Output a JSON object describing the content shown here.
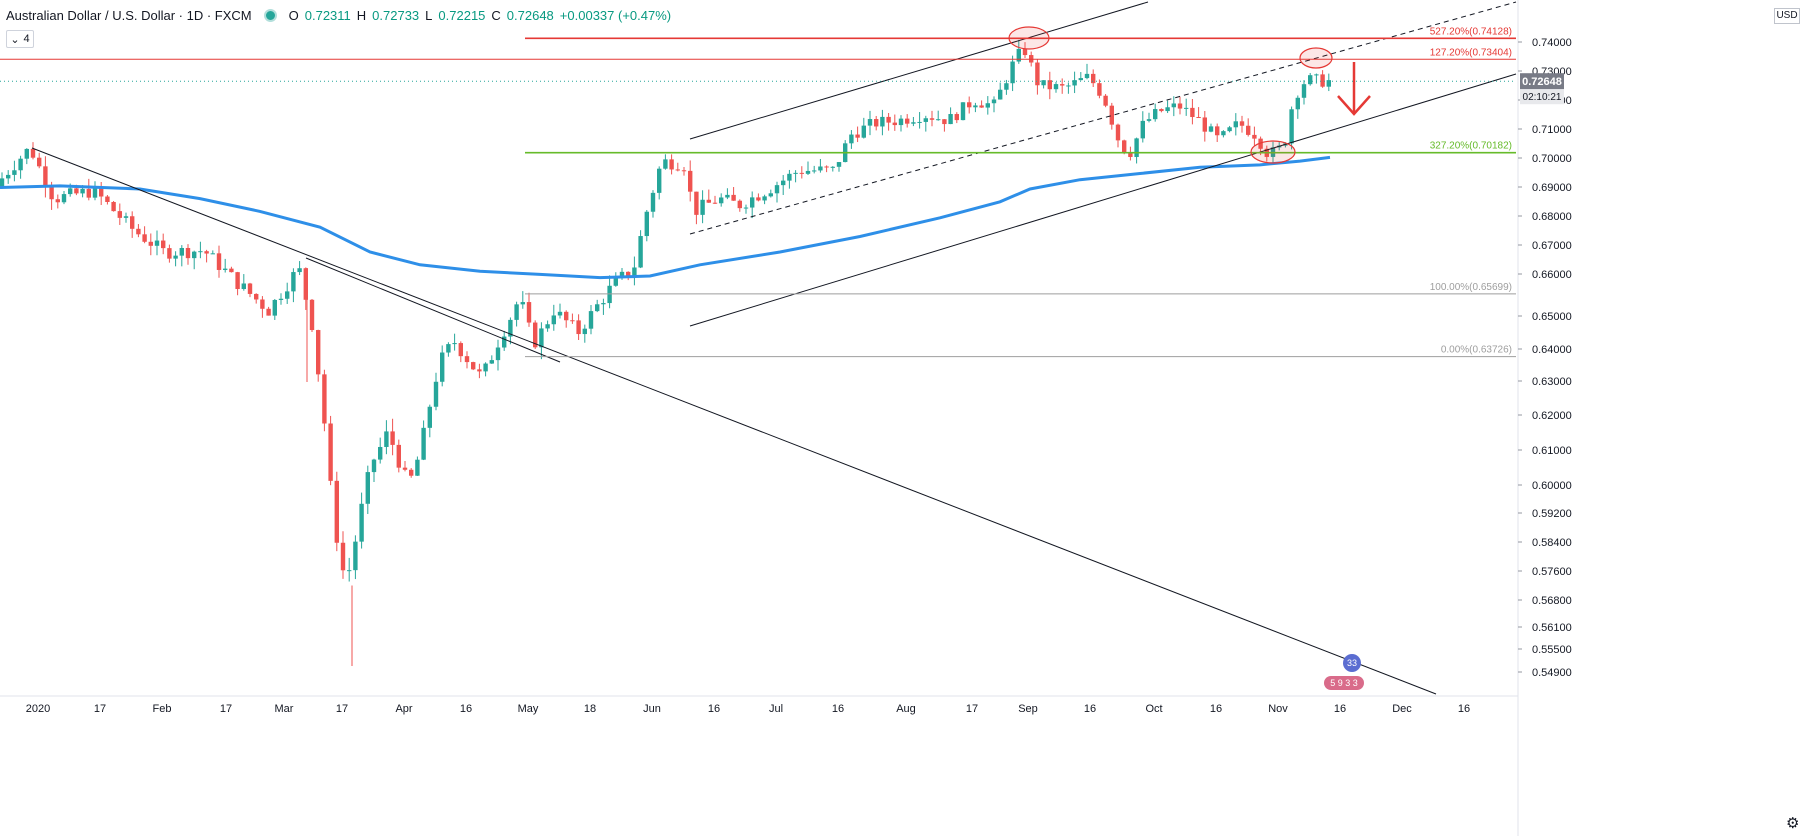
{
  "header": {
    "symbol": "Australian Dollar / U.S. Dollar · 1D · FXCM",
    "open_label": "O",
    "open": "0.72311",
    "high_label": "H",
    "high": "0.72733",
    "low_label": "L",
    "low": "0.72215",
    "close_label": "C",
    "close": "0.72648",
    "change": "+0.00337 (+0.47%)"
  },
  "interval_box": "4",
  "currency": "USD",
  "current_price": "0.72648",
  "countdown": "02:10:21",
  "colors": {
    "up": "#26a69a",
    "down": "#ef5350",
    "ma": "#2e8fe8",
    "fib_red": "#e53935",
    "fib_green": "#66bb2a",
    "fib_gray": "#9e9e9e",
    "trend": "#131722"
  },
  "chart_data": {
    "type": "candlestick",
    "ylim": [
      0.5455,
      0.7495
    ],
    "y_ticks": [
      "0.74000",
      "0.73000",
      "0.72000",
      "0.71000",
      "0.70000",
      "0.69000",
      "0.68000",
      "0.67000",
      "0.66000",
      "0.65000",
      "0.64000",
      "0.63000",
      "0.62000",
      "0.61000",
      "0.60000",
      "0.59200",
      "0.58400",
      "0.57600",
      "0.56800",
      "0.56100",
      "0.55500",
      "0.54900"
    ],
    "x_labels": [
      "2020",
      "17",
      "Feb",
      "17",
      "Mar",
      "17",
      "Apr",
      "16",
      "May",
      "18",
      "Jun",
      "16",
      "Jul",
      "16",
      "Aug",
      "17",
      "Sep",
      "16",
      "Oct",
      "16",
      "Nov",
      "16",
      "Dec",
      "16"
    ],
    "fib_levels": [
      {
        "label": "527.20%(0.74128)",
        "value": 0.74128,
        "color": "#e53935"
      },
      {
        "label": "127.20%(0.73404)",
        "value": 0.73404,
        "color": "#e53935"
      },
      {
        "label": "327.20%(0.70182)",
        "value": 0.70182,
        "color": "#66bb2a"
      },
      {
        "label": "100.00%(0.65699)",
        "value": 0.65699,
        "color": "#9e9e9e"
      },
      {
        "label": "0.00%(0.63726)",
        "value": 0.63726,
        "color": "#9e9e9e"
      }
    ],
    "ma_series": {
      "name": "200-day moving average",
      "style": "thick blue line"
    },
    "annotations": [
      "red down arrow after last candle",
      "three ellipses marking swing highs/lows"
    ],
    "grid": false,
    "counter_badges": [
      "3",
      "3",
      "5",
      "9",
      "3",
      "3"
    ],
    "countdown": "02:10:21"
  }
}
